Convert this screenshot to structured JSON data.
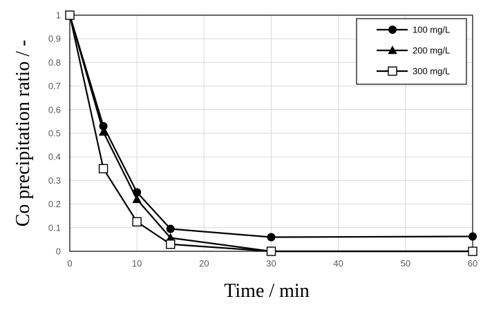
{
  "chart_data": {
    "type": "line",
    "xlabel": "Time / min",
    "ylabel": "Co precipitation ratio / -",
    "xlim": [
      0,
      60
    ],
    "ylim": [
      0,
      1
    ],
    "xticks": [
      0,
      10,
      20,
      30,
      40,
      50,
      60
    ],
    "yticks": [
      0,
      0.1,
      0.2,
      0.3,
      0.4,
      0.5,
      0.6,
      0.7,
      0.8,
      0.9,
      1
    ],
    "grid": true,
    "legend_position": "top-right",
    "series": [
      {
        "name": "100 mg/L",
        "marker": "filled-circle",
        "color": "#000000",
        "x": [
          0,
          5,
          10,
          15,
          30,
          60
        ],
        "y": [
          1.0,
          0.53,
          0.25,
          0.095,
          0.06,
          0.063
        ]
      },
      {
        "name": "200 mg/L",
        "marker": "filled-triangle",
        "color": "#000000",
        "x": [
          0,
          5,
          10,
          15,
          30,
          60
        ],
        "y": [
          1.0,
          0.505,
          0.22,
          0.057,
          0.0,
          0.0
        ]
      },
      {
        "name": "300 mg/L",
        "marker": "open-square",
        "color": "#000000",
        "x": [
          0,
          5,
          10,
          15,
          30,
          60
        ],
        "y": [
          1.0,
          0.35,
          0.125,
          0.03,
          0.0,
          0.0
        ]
      }
    ]
  }
}
